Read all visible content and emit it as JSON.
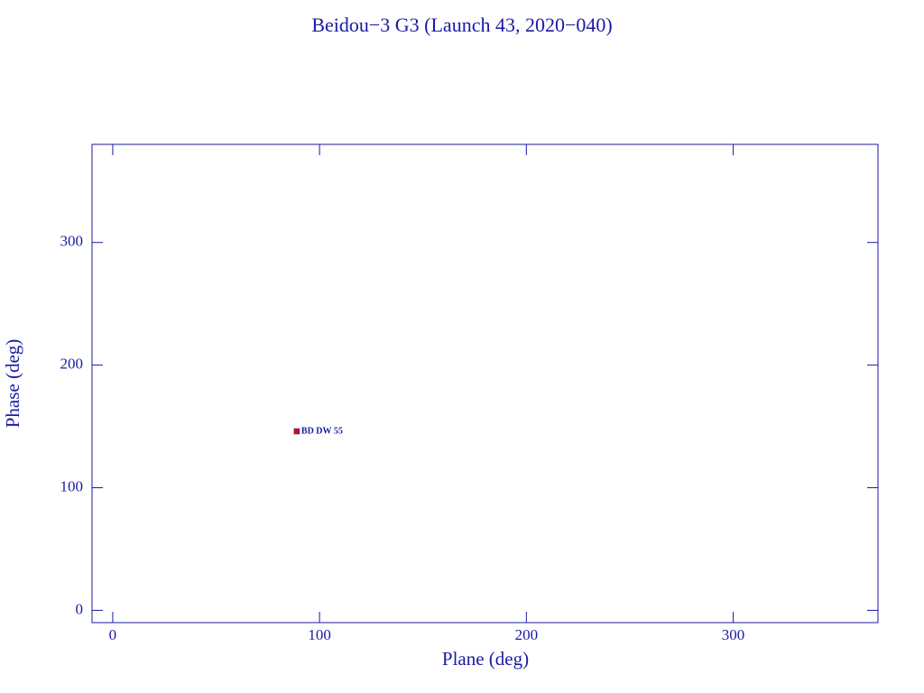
{
  "chart_data": {
    "type": "scatter",
    "title": "Beidou−3 G3 (Launch 43, 2020−040)",
    "x_label": "Plane (deg)",
    "y_label": "Phase (deg)",
    "xlim": [
      -10,
      370
    ],
    "ylim": [
      -10,
      380
    ],
    "xticks": [
      0,
      100,
      200,
      300
    ],
    "yticks": [
      0,
      100,
      200,
      300
    ],
    "color": "#cc1111",
    "points": [
      {
        "x": 89,
        "y": 146,
        "label": "BD DW 55"
      }
    ]
  }
}
